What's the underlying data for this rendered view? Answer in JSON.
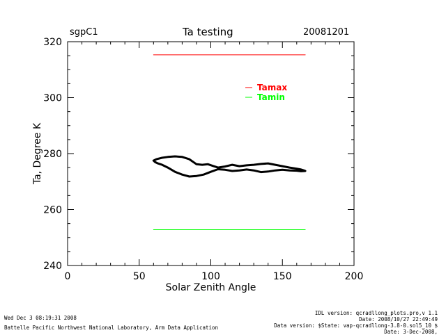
{
  "header": {
    "site": "sgpC1",
    "title": "Ta testing",
    "date": "20081201"
  },
  "chart_data": {
    "type": "line",
    "title": "Ta testing",
    "xlabel": "Solar Zenith Angle",
    "ylabel": "Ta, Degree K",
    "xlim": [
      0,
      200
    ],
    "ylim": [
      240,
      320
    ],
    "x_ticks": [
      0,
      50,
      100,
      150,
      200
    ],
    "y_ticks": [
      240,
      260,
      280,
      300,
      320
    ],
    "legend_placement": "upper-right",
    "series": [
      {
        "name": "Tamax",
        "color": "#ff0000",
        "x": [
          60,
          166
        ],
        "y": [
          315.3,
          315.3
        ]
      },
      {
        "name": "Tamin",
        "color": "#00ff00",
        "x": [
          60,
          166
        ],
        "y": [
          252.8,
          252.8
        ]
      },
      {
        "name": "",
        "color": "#000000",
        "x": [
          60,
          62,
          66,
          70,
          75,
          80,
          85,
          90,
          94,
          98,
          102,
          105,
          110,
          115,
          120,
          125,
          130,
          135,
          140,
          145,
          150,
          155,
          160,
          163,
          165,
          166,
          163,
          160,
          155,
          150,
          145,
          140,
          135,
          130,
          125,
          120,
          115,
          110,
          105,
          100,
          95,
          90,
          85,
          80,
          75,
          70,
          66,
          63,
          61,
          60
        ],
        "y": [
          277.5,
          278.0,
          278.5,
          278.8,
          279.0,
          278.8,
          278.0,
          276.2,
          276.0,
          276.2,
          275.5,
          275.0,
          275.4,
          276.0,
          275.5,
          275.8,
          276.0,
          276.3,
          276.5,
          276.0,
          275.5,
          275.0,
          274.6,
          274.3,
          274.0,
          273.8,
          273.7,
          273.9,
          274.0,
          274.2,
          274.0,
          273.6,
          273.4,
          274.0,
          274.3,
          274.0,
          273.8,
          274.2,
          274.4,
          273.5,
          272.5,
          272.0,
          271.8,
          272.5,
          273.5,
          275.0,
          276.0,
          276.5,
          277.0,
          277.5
        ]
      }
    ]
  },
  "footer": {
    "timestamp": "Wed Dec  3 08:19:31 2008",
    "organization": "Battelle Pacific Northwest National Laboratory, Arm Data Application",
    "idl_version": "IDL version: qcradllong_plots.pro,v 1.1",
    "file_date": "Date: 2008/10/27 22:49:49",
    "data_version": "Data version: $State: vap-qcradllong-3.8-0.sol5_10 $",
    "run_date": "Date: 3-Dec-2008,"
  }
}
